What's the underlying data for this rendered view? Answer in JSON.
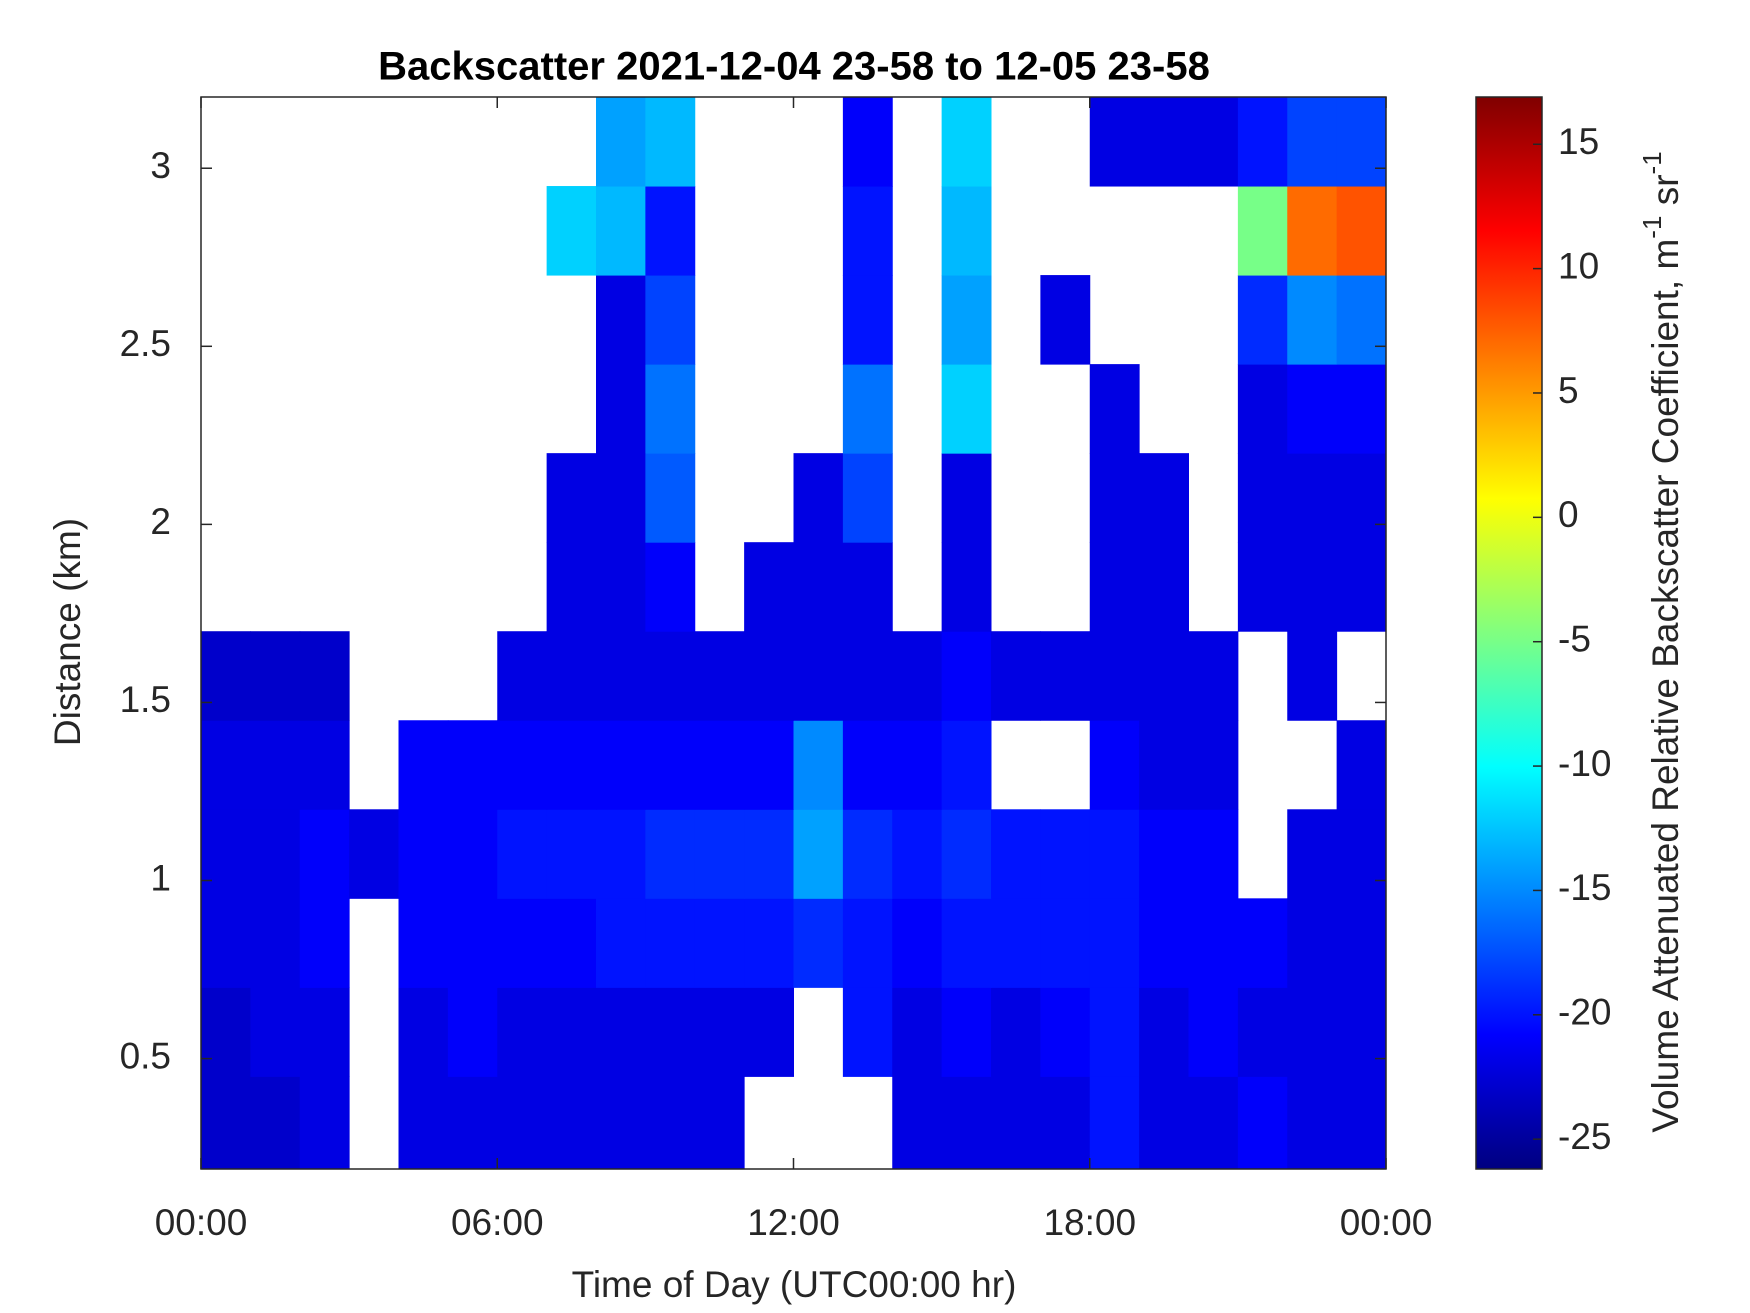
{
  "chart_data": {
    "type": "heatmap",
    "title": "Backscatter 2021-12-04 23-58 to 12-05 23-58",
    "xlabel": "Time of Day (UTC00:00 hr)",
    "ylabel": "Distance (km)",
    "colorbar_label": [
      "Volume Attenuated Relative Backscatter Coefficient, m",
      "-1",
      " sr",
      "-1"
    ],
    "colormap": "jet",
    "xlim": [
      0,
      24
    ],
    "xticks": [
      {
        "value": 0,
        "label": "00:00"
      },
      {
        "value": 6,
        "label": "06:00"
      },
      {
        "value": 12,
        "label": "12:00"
      },
      {
        "value": 18,
        "label": "18:00"
      },
      {
        "value": 24,
        "label": "00:00"
      }
    ],
    "ylim": [
      0.19,
      3.2
    ],
    "yticks": [
      0.5,
      1,
      1.5,
      2,
      2.5,
      3
    ],
    "clim": [
      -26.2,
      16.9
    ],
    "cticks": [
      -25,
      -20,
      -15,
      -10,
      -5,
      0,
      5,
      10,
      15
    ],
    "x_edges": [
      0,
      1,
      2,
      3,
      4,
      5,
      6,
      7,
      8,
      9,
      10,
      11,
      12,
      13,
      14,
      15,
      16,
      17,
      18,
      19,
      20,
      21,
      22,
      23,
      24
    ],
    "y_edges": [
      0.19,
      0.45,
      0.7,
      0.95,
      1.2,
      1.45,
      1.7,
      1.95,
      2.2,
      2.45,
      2.7,
      2.95,
      3.2
    ],
    "z": [
      [
        -23,
        -23,
        -22,
        null,
        -22,
        -22,
        -22,
        -22,
        -22,
        -22,
        -22,
        null,
        null,
        null,
        -22,
        -22,
        -22,
        -22,
        -20,
        -22,
        -22,
        -21,
        -22,
        -22
      ],
      [
        -23,
        -22,
        -22,
        null,
        -22,
        -21,
        -22,
        -22,
        -22,
        -22,
        -22,
        -22,
        null,
        -20,
        -22,
        -21,
        -22,
        -21,
        -20,
        -22,
        -21,
        -22,
        -22,
        -22
      ],
      [
        -22,
        -22,
        -21,
        null,
        -21,
        -21,
        -21,
        -21,
        -20,
        -20,
        -20,
        -20,
        -19,
        -20,
        -21,
        -20,
        -20,
        -20,
        -20,
        -21,
        -21,
        -21,
        -22,
        -22
      ],
      [
        -22,
        -22,
        -21,
        -22,
        -21,
        -21,
        -20,
        -20,
        -20,
        -19,
        -19,
        -19,
        -14,
        -19,
        -20,
        -19,
        -20,
        -20,
        -20,
        -21,
        -21,
        null,
        -22,
        -22
      ],
      [
        -22,
        -22,
        -22,
        null,
        -21,
        -21,
        -21,
        -21,
        -21,
        -21,
        -21,
        -21,
        -15,
        -21,
        -21,
        -20,
        null,
        null,
        -21,
        -22,
        -22,
        null,
        null,
        -22
      ],
      [
        -23,
        -23,
        -23,
        null,
        null,
        null,
        -22,
        -22,
        -22,
        -22,
        -22,
        -22,
        -22,
        -22,
        -22,
        -21,
        -22,
        -22,
        -22,
        -22,
        -22,
        null,
        -22,
        null
      ],
      [
        null,
        null,
        null,
        null,
        null,
        null,
        null,
        -22,
        -22,
        -21,
        null,
        -22,
        -22,
        -22,
        null,
        -22,
        null,
        null,
        -22,
        -22,
        null,
        -22,
        -22,
        -22
      ],
      [
        null,
        null,
        null,
        null,
        null,
        null,
        null,
        -22,
        -22,
        -17,
        null,
        null,
        -22,
        -18,
        null,
        -22,
        null,
        null,
        -22,
        -22,
        null,
        -22,
        -22,
        -22
      ],
      [
        null,
        null,
        null,
        null,
        null,
        null,
        null,
        null,
        -22,
        -16,
        null,
        null,
        null,
        -16,
        null,
        -12,
        null,
        null,
        -22,
        null,
        null,
        -22,
        -21,
        -21
      ],
      [
        null,
        null,
        null,
        null,
        null,
        null,
        null,
        null,
        -22,
        -18,
        null,
        null,
        null,
        -20,
        null,
        -14,
        null,
        -22,
        null,
        null,
        null,
        -19,
        -15,
        -16
      ],
      [
        null,
        null,
        null,
        null,
        null,
        null,
        null,
        -12,
        -13,
        -20,
        null,
        null,
        null,
        -20,
        null,
        -13,
        null,
        null,
        null,
        null,
        null,
        -5,
        7,
        8
      ],
      [
        null,
        null,
        null,
        null,
        null,
        null,
        null,
        null,
        -14,
        -13,
        null,
        null,
        null,
        -21,
        null,
        -12,
        null,
        null,
        -22,
        -22,
        -22,
        -20,
        -18,
        -18
      ]
    ]
  }
}
